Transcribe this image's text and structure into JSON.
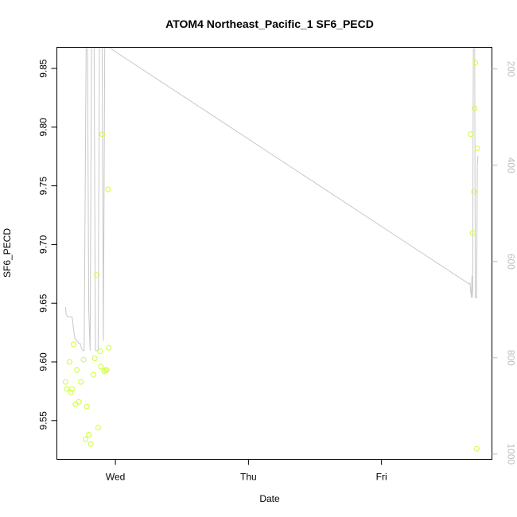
{
  "chart_data": {
    "type": "scatter",
    "title": "ATOM4 Northeast_Pacific_1 SF6_PECD",
    "xlabel": "Date",
    "ylabel": "SF6_PECD",
    "x_ticks": [
      "Wed",
      "Thu",
      "Fri"
    ],
    "x_tick_days": [
      0,
      1,
      2
    ],
    "xlim_days": [
      -0.44,
      2.83
    ],
    "ylim": [
      9.517,
      9.868
    ],
    "y_ticks": [
      9.55,
      9.6,
      9.65,
      9.7,
      9.75,
      9.8,
      9.85
    ],
    "y2_ticks": [
      200,
      400,
      600,
      800,
      1000
    ],
    "y2lim": [
      1011,
      155
    ],
    "colors": {
      "points": "#ccff33",
      "profile_line": "#c8c8c8",
      "axis": "#000000",
      "right_axis": "#bdbdbd"
    },
    "series": [
      {
        "type": "scatter",
        "axis": "left",
        "x_days": [
          -0.375,
          -0.365,
          -0.345,
          -0.335,
          -0.325,
          -0.315,
          -0.3,
          -0.29,
          -0.275,
          -0.26,
          -0.24,
          -0.225,
          -0.215,
          -0.2,
          -0.185,
          -0.165,
          -0.155,
          -0.14,
          -0.13,
          -0.115,
          -0.11,
          -0.1,
          -0.085,
          -0.075,
          -0.065,
          -0.055,
          -0.05,
          2.67,
          2.685,
          2.695,
          2.7,
          2.705,
          2.715,
          2.72
        ],
        "values": [
          9.583,
          9.577,
          9.6,
          9.574,
          9.577,
          9.615,
          9.564,
          9.593,
          9.566,
          9.583,
          9.602,
          9.534,
          9.562,
          9.538,
          9.53,
          9.589,
          9.603,
          9.674,
          9.544,
          9.609,
          9.596,
          9.794,
          9.592,
          9.593,
          9.593,
          9.747,
          9.612,
          9.794,
          9.71,
          9.745,
          9.816,
          9.855,
          9.526,
          9.782
        ]
      },
      {
        "type": "line",
        "axis": "right",
        "x_days": [
          -0.375,
          -0.37,
          -0.36,
          -0.345,
          -0.335,
          -0.325,
          -0.315,
          -0.305,
          -0.29,
          -0.275,
          -0.265,
          -0.255,
          -0.245,
          -0.235,
          -0.22,
          -0.21,
          -0.2,
          -0.19,
          -0.18,
          -0.17,
          -0.16,
          -0.15,
          -0.14,
          -0.13,
          -0.12,
          -0.11,
          -0.1,
          -0.09,
          -0.08,
          -0.07,
          -0.06,
          -0.05,
          2.66,
          2.665,
          2.67,
          2.675,
          2.68,
          2.685,
          2.69,
          2.695,
          2.7,
          2.705,
          2.71,
          2.715,
          2.72,
          2.725
        ],
        "values": [
          695,
          710,
          715,
          715,
          715,
          715,
          740,
          760,
          765,
          770,
          770,
          780,
          785,
          785,
          150,
          150,
          700,
          785,
          150,
          150,
          150,
          785,
          785,
          785,
          150,
          150,
          150,
          765,
          150,
          150,
          150,
          150,
          647,
          645,
          660,
          675,
          630,
          675,
          150,
          150,
          150,
          675,
          675,
          675,
          400,
          380
        ]
      }
    ]
  }
}
